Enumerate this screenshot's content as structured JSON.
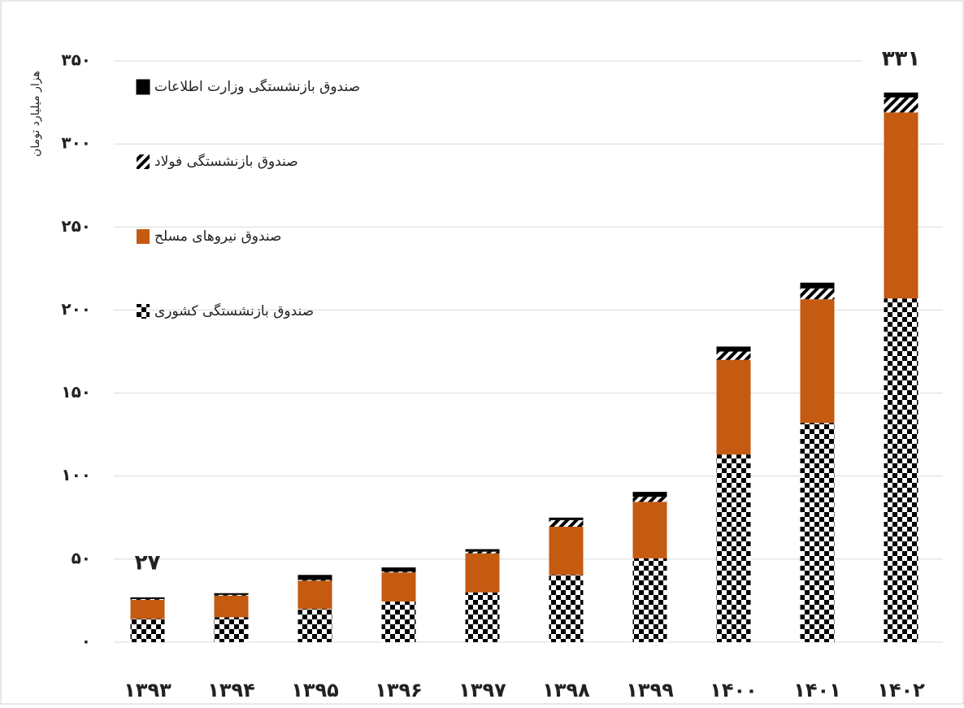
{
  "chart_data": {
    "type": "stacked_bar",
    "y_label": "هزار میلیارد تومان",
    "categories": [
      "۱۳۹۳",
      "۱۳۹۴",
      "۱۳۹۵",
      "۱۳۹۶",
      "۱۳۹۷",
      "۱۳۹۸",
      "۱۳۹۹",
      "۱۴۰۰",
      "۱۴۰۱",
      "۱۴۰۲"
    ],
    "series": [
      {
        "name": "صندوق بازنشستگی کشوری",
        "color": "#1f4e79",
        "pattern": "checker",
        "values": [
          14,
          15,
          20,
          24.5,
          30,
          40.5,
          50.5,
          113,
          132,
          207
        ]
      },
      {
        "name": "صندوق نیروهای مسلح",
        "color": "#c55a11",
        "pattern": "solid",
        "values": [
          11.5,
          13,
          17,
          17.5,
          23.5,
          29,
          34,
          57,
          74.5,
          112
        ]
      },
      {
        "name": "صندوق بازنشستگی فولاد",
        "color": "#5b9bd5",
        "pattern": "hatch",
        "values": [
          0.5,
          0.5,
          0.5,
          0.5,
          1,
          4,
          3,
          5,
          6.5,
          9
        ]
      },
      {
        "name": "صندوق بازنشستگی وزارت اطلاعات",
        "color": "#000000",
        "pattern": "solid",
        "values": [
          1,
          1,
          3,
          2.5,
          1.5,
          1.5,
          3,
          3,
          3.5,
          3
        ]
      }
    ],
    "annotations": [
      "۲۷",
      "۳۳۱"
    ],
    "ylim": [
      0,
      350
    ],
    "yticks": [
      {
        "value": 0,
        "label": "۰"
      },
      {
        "value": 50,
        "label": "۵۰"
      },
      {
        "value": 100,
        "label": "۱۰۰"
      },
      {
        "value": 150,
        "label": "۱۵۰"
      },
      {
        "value": 200,
        "label": "۲۰۰"
      },
      {
        "value": 250,
        "label": "۲۵۰"
      },
      {
        "value": 300,
        "label": "۳۰۰"
      },
      {
        "value": 350,
        "label": "۳۵۰"
      }
    ],
    "grid": true,
    "legend": "upper left"
  }
}
